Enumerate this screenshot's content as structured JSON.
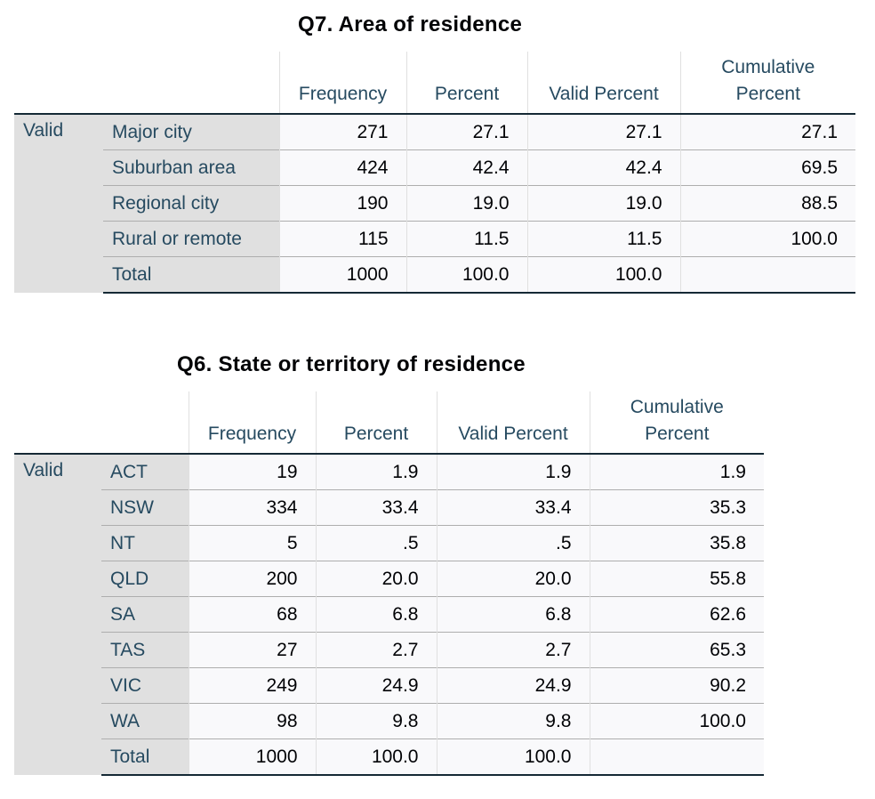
{
  "tables": [
    {
      "title": "Q7. Area of residence",
      "headers": [
        "Frequency",
        "Percent",
        "Valid Percent",
        "Cumulative Percent"
      ],
      "stub": "Valid",
      "rows": [
        {
          "label": "Major city",
          "frequency": "271",
          "percent": "27.1",
          "valid_percent": "27.1",
          "cumulative_percent": "27.1"
        },
        {
          "label": "Suburban area",
          "frequency": "424",
          "percent": "42.4",
          "valid_percent": "42.4",
          "cumulative_percent": "69.5"
        },
        {
          "label": "Regional city",
          "frequency": "190",
          "percent": "19.0",
          "valid_percent": "19.0",
          "cumulative_percent": "88.5"
        },
        {
          "label": "Rural or remote",
          "frequency": "115",
          "percent": "11.5",
          "valid_percent": "11.5",
          "cumulative_percent": "100.0"
        },
        {
          "label": "Total",
          "frequency": "1000",
          "percent": "100.0",
          "valid_percent": "100.0",
          "cumulative_percent": ""
        }
      ]
    },
    {
      "title": "Q6. State or territory of residence",
      "headers": [
        "Frequency",
        "Percent",
        "Valid Percent",
        "Cumulative Percent"
      ],
      "stub": "Valid",
      "rows": [
        {
          "label": "ACT",
          "frequency": "19",
          "percent": "1.9",
          "valid_percent": "1.9",
          "cumulative_percent": "1.9"
        },
        {
          "label": "NSW",
          "frequency": "334",
          "percent": "33.4",
          "valid_percent": "33.4",
          "cumulative_percent": "35.3"
        },
        {
          "label": "NT",
          "frequency": "5",
          "percent": ".5",
          "valid_percent": ".5",
          "cumulative_percent": "35.8"
        },
        {
          "label": "QLD",
          "frequency": "200",
          "percent": "20.0",
          "valid_percent": "20.0",
          "cumulative_percent": "55.8"
        },
        {
          "label": "SA",
          "frequency": "68",
          "percent": "6.8",
          "valid_percent": "6.8",
          "cumulative_percent": "62.6"
        },
        {
          "label": "TAS",
          "frequency": "27",
          "percent": "2.7",
          "valid_percent": "2.7",
          "cumulative_percent": "65.3"
        },
        {
          "label": "VIC",
          "frequency": "249",
          "percent": "24.9",
          "valid_percent": "24.9",
          "cumulative_percent": "90.2"
        },
        {
          "label": "WA",
          "frequency": "98",
          "percent": "9.8",
          "valid_percent": "9.8",
          "cumulative_percent": "100.0"
        },
        {
          "label": "Total",
          "frequency": "1000",
          "percent": "100.0",
          "valid_percent": "100.0",
          "cumulative_percent": ""
        }
      ]
    }
  ]
}
